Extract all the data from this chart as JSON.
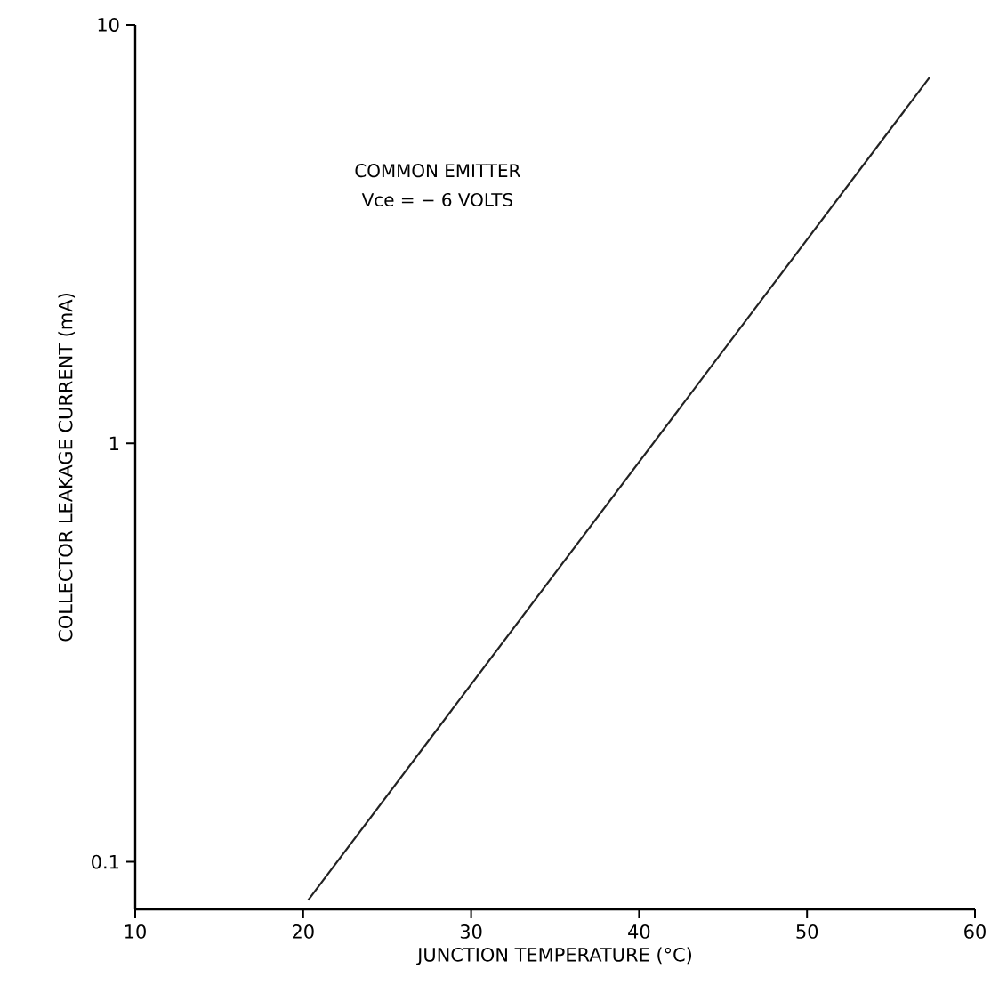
{
  "chart_data": {
    "type": "line",
    "xlabel": "JUNCTION TEMPERATURE (°C)",
    "ylabel": "COLLECTOR LEAKAGE CURRENT (mA)",
    "annotations": [
      "COMMON EMITTER",
      "Vce = − 6 VOLTS"
    ],
    "x": [
      20.3,
      57.3
    ],
    "series": [
      {
        "color": "#222222",
        "values": [
          0.081,
          7.5
        ]
      }
    ],
    "xlim": [
      10,
      60
    ],
    "xticks": [
      10,
      20,
      30,
      40,
      50,
      60
    ],
    "ylim": [
      0.077,
      10
    ],
    "yticks": [
      0.1,
      1,
      10
    ],
    "log": "y",
    "grid": false,
    "marker": "none",
    "line_style": "solid"
  }
}
